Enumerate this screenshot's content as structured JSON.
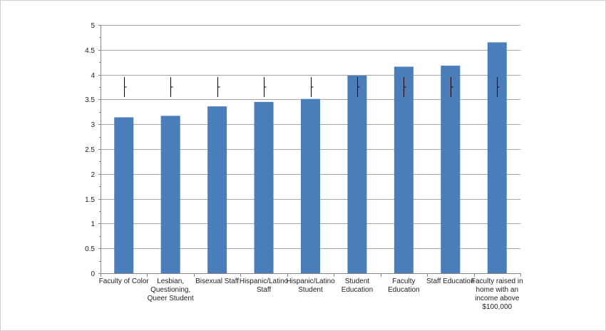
{
  "chart_data": {
    "type": "bar",
    "categories": [
      [
        "Faculty of Color"
      ],
      [
        "Lesbian,",
        "Questioning,",
        "Queer Student"
      ],
      [
        "Bisexual Staff"
      ],
      [
        "Hispanic/Latino",
        "Staff"
      ],
      [
        "Hispanic/Latino",
        "Student"
      ],
      [
        "Student",
        "Education"
      ],
      [
        "Faculty",
        "Education"
      ],
      [
        "Staff Education"
      ],
      [
        "Faculty raised in",
        "home with an",
        "income above",
        "$100,000"
      ]
    ],
    "values": [
      3.14,
      3.17,
      3.36,
      3.45,
      3.51,
      3.98,
      4.16,
      4.18,
      4.65
    ],
    "error_bars": [
      {
        "center": 3.75,
        "low": 3.55,
        "high": 3.95
      },
      {
        "center": 3.75,
        "low": 3.55,
        "high": 3.95
      },
      {
        "center": 3.75,
        "low": 3.55,
        "high": 3.95
      },
      {
        "center": 3.75,
        "low": 3.55,
        "high": 3.95
      },
      {
        "center": 3.75,
        "low": 3.55,
        "high": 3.95
      },
      {
        "center": 3.75,
        "low": 3.55,
        "high": 3.95
      },
      {
        "center": 3.75,
        "low": 3.55,
        "high": 3.95
      },
      {
        "center": 3.75,
        "low": 3.55,
        "high": 3.95
      },
      {
        "center": 3.75,
        "low": 3.55,
        "high": 3.95
      }
    ],
    "ylim": [
      0,
      5
    ],
    "yticks": [
      "0",
      "0.5",
      "1",
      "1.5",
      "2",
      "2.5",
      "3",
      "3.5",
      "4",
      "4.5",
      "5"
    ],
    "grid": true,
    "colors": {
      "bar": "#4a7ebb",
      "grid": "#a6a6a6",
      "axis": "#868686",
      "error": "#000000"
    }
  }
}
